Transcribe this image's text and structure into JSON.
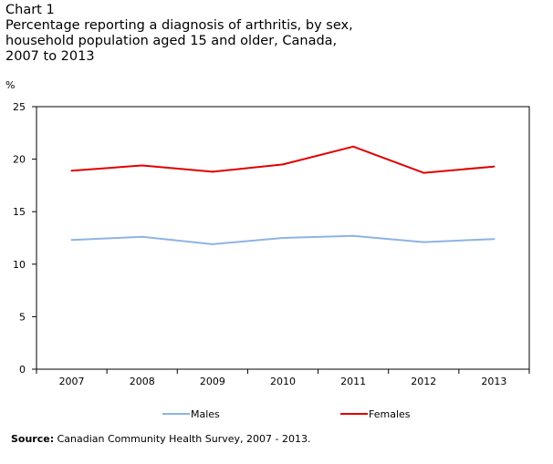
{
  "title": {
    "label": "Chart 1",
    "lines": [
      "Percentage reporting a diagnosis of arthritis, by sex,",
      "household population aged 15 and older, Canada,",
      "2007 to 2013"
    ]
  },
  "source": {
    "label": "Source:",
    "text": " Canadian Community Health Survey, 2007 - 2013."
  },
  "colors": {
    "males": "#8eb4e3",
    "females": "#e00000",
    "axis": "#000000"
  },
  "chart_data": {
    "type": "line",
    "title": "Percentage reporting a diagnosis of arthritis, by sex, household population aged 15 and older, Canada, 2007 to 2013",
    "ylabel": "%",
    "xlabel": "",
    "ylim": [
      0,
      25
    ],
    "yticks": [
      0,
      5,
      10,
      15,
      20,
      25
    ],
    "categories": [
      "2007",
      "2008",
      "2009",
      "2010",
      "2011",
      "2012",
      "2013"
    ],
    "series": [
      {
        "name": "Males",
        "values": [
          12.3,
          12.6,
          11.9,
          12.5,
          12.7,
          12.1,
          12.4
        ]
      },
      {
        "name": "Females",
        "values": [
          18.9,
          19.4,
          18.8,
          19.5,
          21.2,
          18.7,
          19.3
        ]
      }
    ],
    "grid": false,
    "legend": "bottom"
  }
}
